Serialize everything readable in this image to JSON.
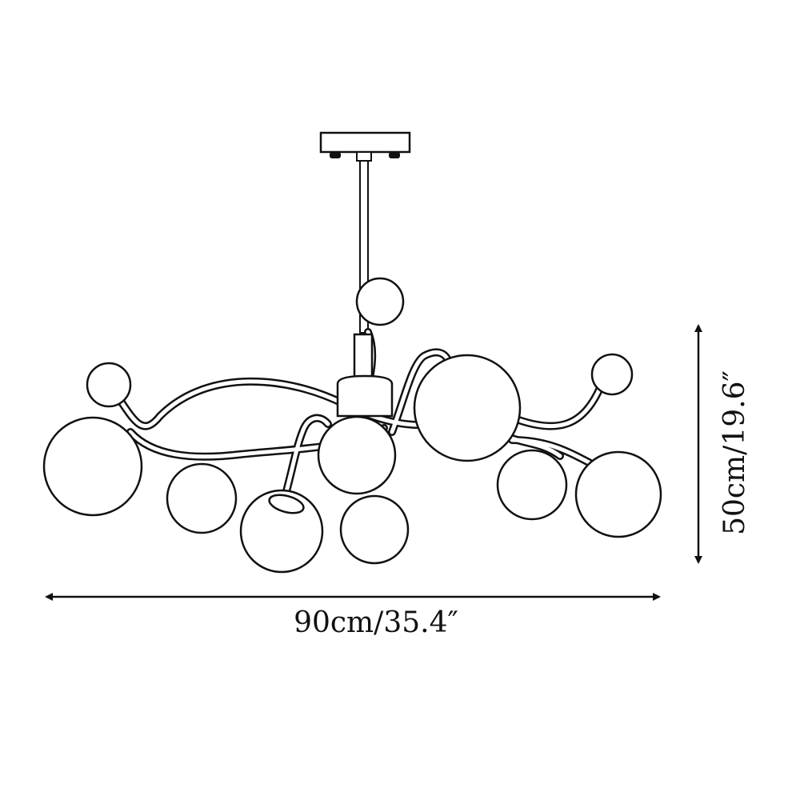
{
  "dimensions": {
    "width_label": "90cm/35.4″",
    "height_label": "50cm/19.6″"
  },
  "colors": {
    "line": "#111111",
    "background": "#ffffff"
  }
}
